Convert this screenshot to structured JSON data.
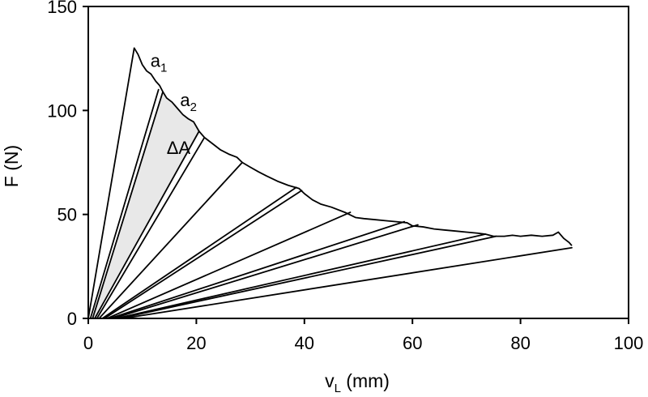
{
  "chart_data": {
    "type": "line",
    "xlabel": {
      "main": "v",
      "sub": "L",
      "unit": " (mm)"
    },
    "ylabel": "F (N)",
    "xlim": [
      0,
      100
    ],
    "ylim": [
      0,
      150
    ],
    "xticks": [
      "0",
      "20",
      "40",
      "60",
      "80",
      "100"
    ],
    "yticks": [
      "0",
      "50",
      "100",
      "150"
    ],
    "grid": false,
    "legend": "none",
    "colors": {
      "curve": "#000000",
      "shade": "#e8e8e8",
      "axis": "#000000"
    },
    "envelope": [
      [
        8.5,
        130
      ],
      [
        9.2,
        127
      ],
      [
        10.0,
        122
      ],
      [
        10.8,
        119
      ],
      [
        11.6,
        117.5
      ],
      [
        12.5,
        114
      ],
      [
        13.2,
        112
      ],
      [
        13.8,
        109
      ],
      [
        14.5,
        106
      ],
      [
        15.5,
        104
      ],
      [
        16.5,
        101
      ],
      [
        17.5,
        98
      ],
      [
        18.5,
        96
      ],
      [
        19.5,
        94.5
      ],
      [
        20.5,
        90
      ],
      [
        21.5,
        87
      ],
      [
        23,
        84
      ],
      [
        24.5,
        81
      ],
      [
        26,
        79
      ],
      [
        27.5,
        77.5
      ],
      [
        28.5,
        75
      ],
      [
        29.8,
        73
      ],
      [
        31.5,
        70.5
      ],
      [
        33,
        68.5
      ],
      [
        35,
        66
      ],
      [
        37,
        64
      ],
      [
        39,
        62.5
      ],
      [
        40,
        60
      ],
      [
        41.5,
        57
      ],
      [
        43,
        55
      ],
      [
        45,
        53.5
      ],
      [
        47.5,
        51
      ],
      [
        49.5,
        48.5
      ],
      [
        51,
        48
      ],
      [
        53,
        47.5
      ],
      [
        55,
        47
      ],
      [
        57,
        46.5
      ],
      [
        59,
        46
      ],
      [
        60,
        44.5
      ],
      [
        62,
        44
      ],
      [
        64,
        43
      ],
      [
        66,
        42.5
      ],
      [
        68,
        42
      ],
      [
        70,
        41.5
      ],
      [
        72,
        41
      ],
      [
        73.5,
        40.5
      ],
      [
        75,
        39.5
      ],
      [
        77,
        39.5
      ],
      [
        78.5,
        40
      ],
      [
        80,
        39.5
      ],
      [
        82,
        40
      ],
      [
        84,
        39.5
      ],
      [
        86,
        40
      ],
      [
        87,
        41.5
      ],
      [
        88,
        38.5
      ],
      [
        89,
        36.5
      ],
      [
        89.5,
        35
      ]
    ],
    "unloading_lines": [
      {
        "start": [
          0,
          0
        ],
        "end": [
          8.5,
          130
        ]
      },
      {
        "start": [
          0.4,
          0
        ],
        "end": [
          13.0,
          110
        ]
      },
      {
        "start": [
          0.8,
          0
        ],
        "end": [
          13.8,
          109
        ]
      },
      {
        "start": [
          1.2,
          0
        ],
        "end": [
          20.5,
          90
        ]
      },
      {
        "start": [
          1.6,
          0
        ],
        "end": [
          21.5,
          87
        ]
      },
      {
        "start": [
          2.0,
          0
        ],
        "end": [
          28.5,
          75
        ]
      },
      {
        "start": [
          2.6,
          0
        ],
        "end": [
          38.5,
          63
        ]
      },
      {
        "start": [
          3.0,
          0
        ],
        "end": [
          39.5,
          61.5
        ]
      },
      {
        "start": [
          3.5,
          0
        ],
        "end": [
          48.5,
          51
        ]
      },
      {
        "start": [
          4.0,
          0
        ],
        "end": [
          58.5,
          46.5
        ]
      },
      {
        "start": [
          4.6,
          0
        ],
        "end": [
          61.0,
          45
        ]
      },
      {
        "start": [
          5.2,
          0
        ],
        "end": [
          73.5,
          40.5
        ]
      },
      {
        "start": [
          5.8,
          0
        ],
        "end": [
          75.5,
          39.5
        ]
      },
      {
        "start": [
          6.5,
          0
        ],
        "end": [
          89.5,
          34
        ]
      }
    ],
    "shaded_region": {
      "label": "ΔA",
      "polygon": [
        [
          0.8,
          0
        ],
        [
          13.8,
          109
        ],
        [
          14.5,
          106
        ],
        [
          15.5,
          104
        ],
        [
          16.5,
          101
        ],
        [
          17.5,
          98
        ],
        [
          18.5,
          96
        ],
        [
          19.5,
          94.5
        ],
        [
          20.5,
          90
        ],
        [
          1.2,
          0
        ]
      ]
    },
    "annotations": [
      {
        "main": "a",
        "sub": "1",
        "x": 11.5,
        "y": 121
      },
      {
        "main": "a",
        "sub": "2",
        "x": 17.0,
        "y": 102
      },
      {
        "main": "ΔA",
        "sub": "",
        "x": 14.5,
        "y": 79
      }
    ]
  }
}
